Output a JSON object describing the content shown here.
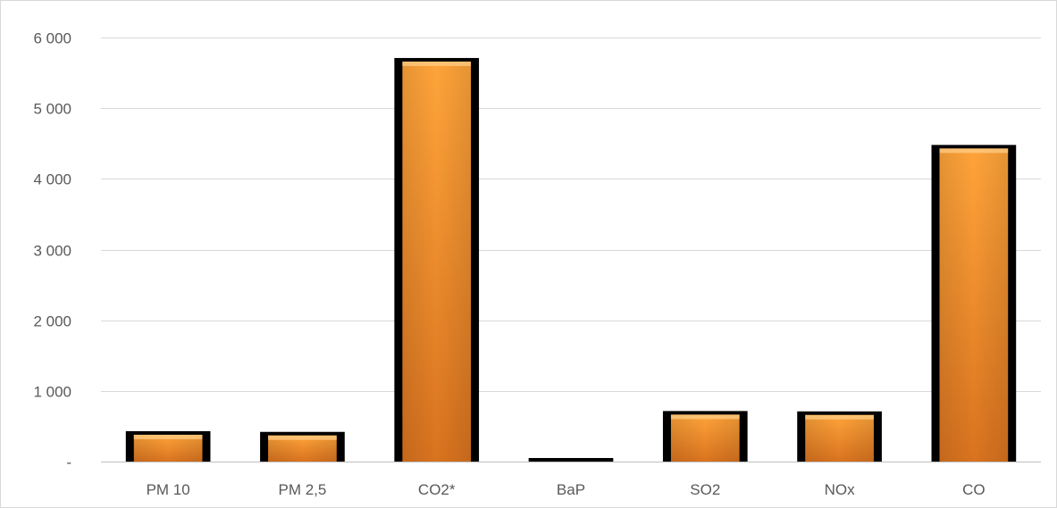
{
  "chart_data": {
    "type": "bar",
    "categories": [
      "PM 10",
      "PM 2,5",
      "CO2*",
      "BaP",
      "SO2",
      "NOx",
      "CO"
    ],
    "values": [
      430,
      420,
      5710,
      45,
      715,
      710,
      4480
    ],
    "ylim": [
      0,
      6000
    ],
    "yticks": [
      0,
      1000,
      2000,
      3000,
      4000,
      5000,
      6000
    ],
    "ytick_labels": [
      "-",
      "1 000",
      "2 000",
      "3 000",
      "4 000",
      "5 000",
      "6 000"
    ],
    "grid": true,
    "legend": "none",
    "colors": {
      "bar_top": "#ffa43a",
      "bar_bottom": "#d9731f",
      "bar_edge": "#000000",
      "grid": "#d9d9d9",
      "axis": "#bfbfbf",
      "text": "#595959"
    }
  }
}
